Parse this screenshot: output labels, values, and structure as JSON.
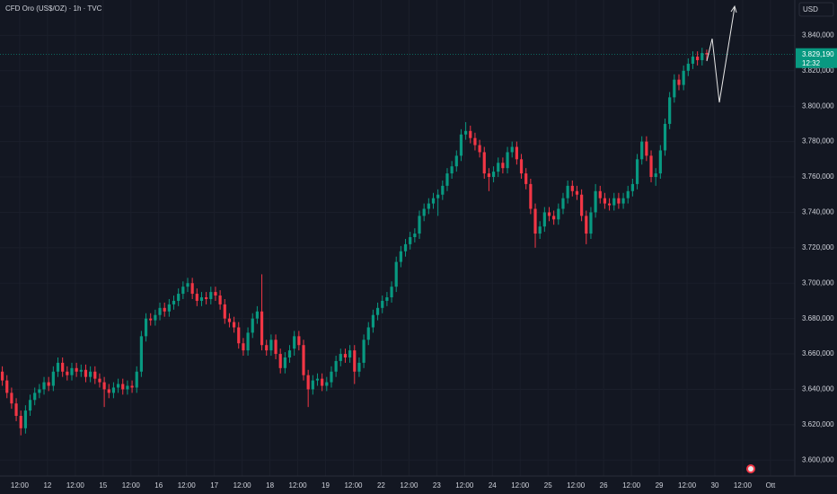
{
  "chart_data": {
    "type": "candlestick",
    "title": "CFD Oro (US$/OZ) · 1h · TVC",
    "currency": "USD",
    "up_color": "#089981",
    "down_color": "#f23645",
    "grid": true,
    "last_price": {
      "value": 3829.19,
      "label": "3.829,190"
    },
    "countdown": "12:32",
    "ylim": [
      3591,
      3860
    ],
    "yticks": [
      {
        "value": 3600,
        "label": "3.600,000"
      },
      {
        "value": 3620,
        "label": "3.620,000"
      },
      {
        "value": 3640,
        "label": "3.640,000"
      },
      {
        "value": 3660,
        "label": "3.660,000"
      },
      {
        "value": 3680,
        "label": "3.680,000"
      },
      {
        "value": 3700,
        "label": "3.700,000"
      },
      {
        "value": 3720,
        "label": "3.720,000"
      },
      {
        "value": 3740,
        "label": "3.740,000"
      },
      {
        "value": 3760,
        "label": "3.760,000"
      },
      {
        "value": 3780,
        "label": "3.780,000"
      },
      {
        "value": 3800,
        "label": "3.800,000"
      },
      {
        "value": 3820,
        "label": "3.820,000"
      },
      {
        "value": 3840,
        "label": "3.840,000"
      }
    ],
    "xlim": [
      -0.5,
      171
    ],
    "xticks": [
      {
        "value": 3.75,
        "label": "12:00"
      },
      {
        "value": 9.75,
        "label": "12"
      },
      {
        "value": 15.75,
        "label": "12:00"
      },
      {
        "value": 21.75,
        "label": "15"
      },
      {
        "value": 27.75,
        "label": "12:00"
      },
      {
        "value": 33.75,
        "label": "16"
      },
      {
        "value": 39.75,
        "label": "12:00"
      },
      {
        "value": 45.75,
        "label": "17"
      },
      {
        "value": 51.75,
        "label": "12:00"
      },
      {
        "value": 57.75,
        "label": "18"
      },
      {
        "value": 63.75,
        "label": "12:00"
      },
      {
        "value": 69.75,
        "label": "19"
      },
      {
        "value": 75.75,
        "label": "12:00"
      },
      {
        "value": 81.75,
        "label": "22"
      },
      {
        "value": 87.75,
        "label": "12:00"
      },
      {
        "value": 93.75,
        "label": "23"
      },
      {
        "value": 99.75,
        "label": "12:00"
      },
      {
        "value": 105.75,
        "label": "24"
      },
      {
        "value": 111.75,
        "label": "12:00"
      },
      {
        "value": 117.75,
        "label": "25"
      },
      {
        "value": 123.75,
        "label": "12:00"
      },
      {
        "value": 129.75,
        "label": "26"
      },
      {
        "value": 135.75,
        "label": "12:00"
      },
      {
        "value": 141.75,
        "label": "29"
      },
      {
        "value": 147.75,
        "label": "12:00"
      },
      {
        "value": 153.75,
        "label": "30"
      },
      {
        "value": 159.75,
        "label": "12:00"
      },
      {
        "value": 165.75,
        "label": "Ott"
      }
    ],
    "ohlc": [
      [
        3650,
        3653,
        3642,
        3645
      ],
      [
        3645,
        3648,
        3635,
        3638
      ],
      [
        3638,
        3641,
        3629,
        3632
      ],
      [
        3632,
        3635,
        3622,
        3625
      ],
      [
        3625,
        3628,
        3614,
        3618
      ],
      [
        3618,
        3631,
        3615,
        3628
      ],
      [
        3628,
        3637,
        3625,
        3634
      ],
      [
        3634,
        3641,
        3631,
        3638
      ],
      [
        3638,
        3643,
        3635,
        3640
      ],
      [
        3640,
        3647,
        3637,
        3644
      ],
      [
        3644,
        3647,
        3639,
        3642
      ],
      [
        3642,
        3653,
        3639,
        3650
      ],
      [
        3650,
        3658,
        3647,
        3655
      ],
      [
        3655,
        3658,
        3647,
        3650
      ],
      [
        3650,
        3653,
        3645,
        3648
      ],
      [
        3648,
        3655,
        3645,
        3652
      ],
      [
        3652,
        3655,
        3647,
        3650
      ],
      [
        3650,
        3654,
        3647,
        3651
      ],
      [
        3651,
        3654,
        3644,
        3647
      ],
      [
        3647,
        3653,
        3644,
        3650
      ],
      [
        3650,
        3653,
        3643,
        3646
      ],
      [
        3646,
        3649,
        3641,
        3644
      ],
      [
        3644,
        3647,
        3630,
        3640
      ],
      [
        3640,
        3643,
        3635,
        3638
      ],
      [
        3638,
        3644,
        3635,
        3641
      ],
      [
        3641,
        3646,
        3638,
        3643
      ],
      [
        3643,
        3646,
        3637,
        3640
      ],
      [
        3640,
        3645,
        3637,
        3642
      ],
      [
        3642,
        3645,
        3638,
        3641
      ],
      [
        3641,
        3653,
        3638,
        3650
      ],
      [
        3650,
        3673,
        3647,
        3670
      ],
      [
        3670,
        3683,
        3667,
        3680
      ],
      [
        3680,
        3683,
        3676,
        3679
      ],
      [
        3679,
        3685,
        3676,
        3682
      ],
      [
        3682,
        3689,
        3679,
        3686
      ],
      [
        3686,
        3689,
        3681,
        3684
      ],
      [
        3684,
        3691,
        3681,
        3688
      ],
      [
        3688,
        3693,
        3685,
        3690
      ],
      [
        3690,
        3697,
        3687,
        3694
      ],
      [
        3694,
        3701,
        3691,
        3698
      ],
      [
        3698,
        3703,
        3695,
        3700
      ],
      [
        3700,
        3703,
        3691,
        3694
      ],
      [
        3694,
        3697,
        3687,
        3690
      ],
      [
        3690,
        3695,
        3687,
        3692
      ],
      [
        3692,
        3695,
        3688,
        3691
      ],
      [
        3691,
        3698,
        3688,
        3695
      ],
      [
        3695,
        3698,
        3690,
        3693
      ],
      [
        3693,
        3696,
        3685,
        3688
      ],
      [
        3688,
        3691,
        3677,
        3680
      ],
      [
        3680,
        3683,
        3675,
        3678
      ],
      [
        3678,
        3681,
        3672,
        3675
      ],
      [
        3675,
        3678,
        3663,
        3666
      ],
      [
        3666,
        3669,
        3659,
        3662
      ],
      [
        3662,
        3675,
        3659,
        3672
      ],
      [
        3672,
        3683,
        3669,
        3680
      ],
      [
        3680,
        3687,
        3677,
        3684
      ],
      [
        3684,
        3705,
        3662,
        3665
      ],
      [
        3665,
        3668,
        3659,
        3662
      ],
      [
        3662,
        3671,
        3659,
        3668
      ],
      [
        3668,
        3671,
        3657,
        3660
      ],
      [
        3660,
        3663,
        3649,
        3652
      ],
      [
        3652,
        3661,
        3649,
        3658
      ],
      [
        3658,
        3665,
        3655,
        3662
      ],
      [
        3663,
        3673,
        3659,
        3670
      ],
      [
        3670,
        3673,
        3662,
        3665
      ],
      [
        3665,
        3668,
        3645,
        3648
      ],
      [
        3648,
        3651,
        3630,
        3640
      ],
      [
        3640,
        3648,
        3637,
        3645
      ],
      [
        3645,
        3649,
        3642,
        3646
      ],
      [
        3646,
        3649,
        3639,
        3642
      ],
      [
        3642,
        3647,
        3639,
        3644
      ],
      [
        3644,
        3653,
        3641,
        3650
      ],
      [
        3650,
        3659,
        3647,
        3656
      ],
      [
        3656,
        3663,
        3653,
        3660
      ],
      [
        3660,
        3663,
        3655,
        3658
      ],
      [
        3658,
        3665,
        3655,
        3662
      ],
      [
        3662,
        3665,
        3643,
        3650
      ],
      [
        3650,
        3658,
        3647,
        3655
      ],
      [
        3655,
        3671,
        3652,
        3668
      ],
      [
        3668,
        3678,
        3665,
        3675
      ],
      [
        3675,
        3685,
        3672,
        3682
      ],
      [
        3682,
        3689,
        3679,
        3686
      ],
      [
        3686,
        3693,
        3683,
        3690
      ],
      [
        3690,
        3695,
        3687,
        3692
      ],
      [
        3692,
        3701,
        3689,
        3698
      ],
      [
        3698,
        3715,
        3695,
        3712
      ],
      [
        3712,
        3721,
        3709,
        3718
      ],
      [
        3718,
        3725,
        3715,
        3722
      ],
      [
        3722,
        3729,
        3719,
        3726
      ],
      [
        3726,
        3731,
        3723,
        3728
      ],
      [
        3728,
        3741,
        3725,
        3738
      ],
      [
        3738,
        3745,
        3735,
        3742
      ],
      [
        3742,
        3748,
        3739,
        3745
      ],
      [
        3745,
        3751,
        3742,
        3748
      ],
      [
        3748,
        3753,
        3738,
        3750
      ],
      [
        3750,
        3758,
        3747,
        3755
      ],
      [
        3755,
        3765,
        3752,
        3762
      ],
      [
        3762,
        3769,
        3759,
        3766
      ],
      [
        3766,
        3775,
        3763,
        3772
      ],
      [
        3772,
        3787,
        3769,
        3784
      ],
      [
        3784,
        3791,
        3781,
        3786
      ],
      [
        3786,
        3789,
        3779,
        3782
      ],
      [
        3782,
        3785,
        3775,
        3778
      ],
      [
        3778,
        3781,
        3771,
        3774
      ],
      [
        3774,
        3777,
        3759,
        3762
      ],
      [
        3762,
        3765,
        3752,
        3760
      ],
      [
        3760,
        3766,
        3757,
        3763
      ],
      [
        3763,
        3771,
        3760,
        3768
      ],
      [
        3768,
        3771,
        3762,
        3765
      ],
      [
        3765,
        3777,
        3762,
        3774
      ],
      [
        3774,
        3780,
        3771,
        3777
      ],
      [
        3777,
        3780,
        3767,
        3770
      ],
      [
        3770,
        3773,
        3759,
        3762
      ],
      [
        3762,
        3765,
        3753,
        3756
      ],
      [
        3756,
        3759,
        3739,
        3742
      ],
      [
        3742,
        3745,
        3720,
        3728
      ],
      [
        3728,
        3735,
        3725,
        3732
      ],
      [
        3732,
        3743,
        3729,
        3740
      ],
      [
        3740,
        3743,
        3735,
        3738
      ],
      [
        3738,
        3741,
        3733,
        3736
      ],
      [
        3736,
        3745,
        3733,
        3742
      ],
      [
        3742,
        3751,
        3739,
        3748
      ],
      [
        3748,
        3758,
        3745,
        3755
      ],
      [
        3755,
        3758,
        3749,
        3752
      ],
      [
        3752,
        3755,
        3747,
        3750
      ],
      [
        3750,
        3753,
        3735,
        3738
      ],
      [
        3738,
        3741,
        3722,
        3728
      ],
      [
        3728,
        3743,
        3725,
        3740
      ],
      [
        3740,
        3756,
        3737,
        3752
      ],
      [
        3752,
        3755,
        3745,
        3748
      ],
      [
        3748,
        3751,
        3742,
        3745
      ],
      [
        3745,
        3748,
        3741,
        3744
      ],
      [
        3744,
        3751,
        3741,
        3748
      ],
      [
        3748,
        3751,
        3742,
        3745
      ],
      [
        3745,
        3751,
        3742,
        3748
      ],
      [
        3748,
        3755,
        3745,
        3752
      ],
      [
        3752,
        3759,
        3749,
        3756
      ],
      [
        3756,
        3773,
        3753,
        3770
      ],
      [
        3770,
        3783,
        3767,
        3780
      ],
      [
        3780,
        3783,
        3769,
        3772
      ],
      [
        3772,
        3775,
        3757,
        3760
      ],
      [
        3760,
        3765,
        3755,
        3762
      ],
      [
        3762,
        3778,
        3759,
        3775
      ],
      [
        3775,
        3793,
        3772,
        3790
      ],
      [
        3790,
        3808,
        3787,
        3805
      ],
      [
        3805,
        3818,
        3802,
        3815
      ],
      [
        3815,
        3818,
        3809,
        3812
      ],
      [
        3812,
        3823,
        3809,
        3820
      ],
      [
        3820,
        3827,
        3817,
        3824
      ],
      [
        3824,
        3831,
        3821,
        3828
      ],
      [
        3828,
        3831,
        3823,
        3826
      ],
      [
        3826,
        3833,
        3823,
        3830
      ],
      [
        3830,
        3832,
        3826,
        3829.19
      ]
    ]
  }
}
